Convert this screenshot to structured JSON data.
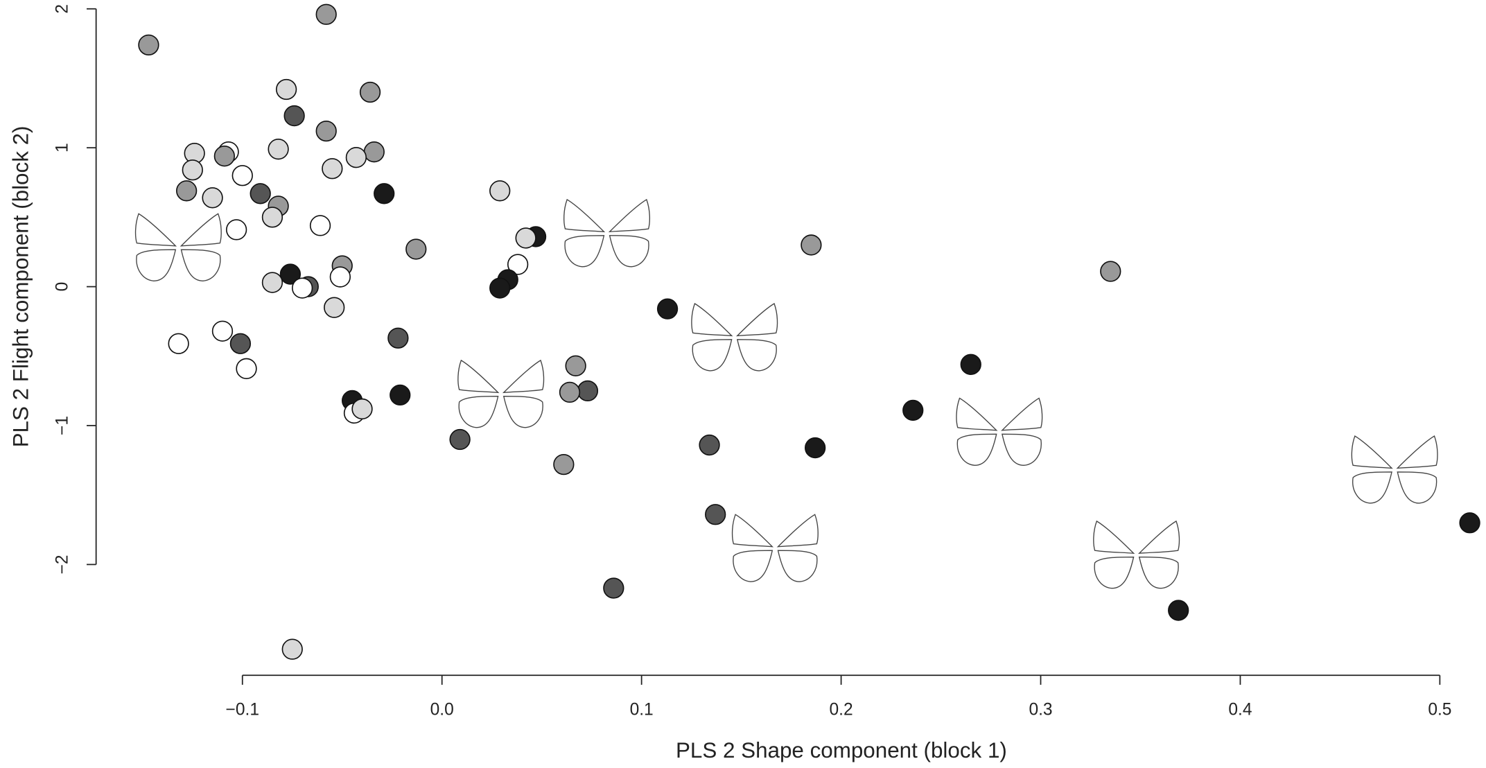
{
  "chart_data": {
    "type": "scatter",
    "xlabel": "PLS 2 Shape component (block 1)",
    "ylabel": "PLS 2 Flight component (block 2)",
    "x": [
      -0.147,
      -0.058,
      -0.078,
      -0.074,
      -0.036,
      -0.058,
      -0.124,
      -0.107,
      -0.109,
      -0.082,
      -0.034,
      -0.043,
      -0.055,
      -0.125,
      -0.1,
      -0.128,
      -0.115,
      -0.091,
      -0.082,
      -0.029,
      -0.085,
      -0.103,
      -0.061,
      -0.013,
      0.029,
      0.047,
      0.042,
      0.038,
      0.033,
      0.029,
      -0.05,
      -0.051,
      -0.076,
      -0.085,
      -0.067,
      -0.07,
      -0.054,
      -0.132,
      -0.11,
      -0.101,
      -0.098,
      -0.022,
      -0.045,
      -0.044,
      -0.04,
      -0.021,
      0.009,
      0.067,
      0.073,
      0.064,
      0.061,
      0.086,
      0.113,
      0.134,
      0.137,
      0.185,
      0.187,
      0.236,
      0.265,
      0.335,
      0.369,
      0.515,
      -0.075
    ],
    "values": [
      1.74,
      1.96,
      1.42,
      1.23,
      1.4,
      1.12,
      0.96,
      0.97,
      0.94,
      0.99,
      0.97,
      0.93,
      0.85,
      0.84,
      0.8,
      0.69,
      0.64,
      0.67,
      0.58,
      0.67,
      0.5,
      0.41,
      0.44,
      0.27,
      0.69,
      0.36,
      0.35,
      0.16,
      0.05,
      -0.01,
      0.15,
      0.07,
      0.09,
      0.03,
      0,
      -0.01,
      -0.15,
      -0.41,
      -0.32,
      -0.41,
      -0.59,
      -0.37,
      -0.82,
      -0.91,
      -0.88,
      -0.78,
      -1.1,
      -0.57,
      -0.75,
      -0.76,
      -1.28,
      -2.17,
      -0.16,
      -1.14,
      -1.64,
      0.3,
      -1.16,
      -0.89,
      -0.56,
      0.11,
      -2.33,
      -1.7,
      -2.61
    ],
    "colors": [
      "#999999",
      "#999999",
      "#d9d9d9",
      "#555555",
      "#999999",
      "#999999",
      "#d9d9d9",
      "#ffffff",
      "#999999",
      "#d9d9d9",
      "#999999",
      "#d9d9d9",
      "#d9d9d9",
      "#d9d9d9",
      "#ffffff",
      "#999999",
      "#d9d9d9",
      "#555555",
      "#999999",
      "#1a1a1a",
      "#d9d9d9",
      "#ffffff",
      "#ffffff",
      "#999999",
      "#d9d9d9",
      "#1a1a1a",
      "#d9d9d9",
      "#ffffff",
      "#1a1a1a",
      "#1a1a1a",
      "#999999",
      "#ffffff",
      "#1a1a1a",
      "#d9d9d9",
      "#555555",
      "#ffffff",
      "#d9d9d9",
      "#ffffff",
      "#ffffff",
      "#555555",
      "#ffffff",
      "#555555",
      "#1a1a1a",
      "#ffffff",
      "#d9d9d9",
      "#1a1a1a",
      "#555555",
      "#999999",
      "#555555",
      "#999999",
      "#999999",
      "#555555",
      "#1a1a1a",
      "#555555",
      "#555555",
      "#999999",
      "#1a1a1a",
      "#1a1a1a",
      "#1a1a1a",
      "#999999",
      "#1a1a1a",
      "#1a1a1a",
      "#d9d9d9"
    ],
    "xlim": [
      -0.17,
      0.52
    ],
    "ylim": [
      -2.75,
      2.05
    ],
    "xticks": [
      {
        "value": -0.1,
        "label": "−0.1"
      },
      {
        "value": 0,
        "label": "0.0"
      },
      0.1,
      0.2,
      0.3,
      0.4,
      0.5
    ],
    "yticks": [
      {
        "value": -2,
        "label": "−2"
      },
      {
        "value": -1,
        "label": "−1"
      },
      0,
      1,
      2
    ]
  }
}
